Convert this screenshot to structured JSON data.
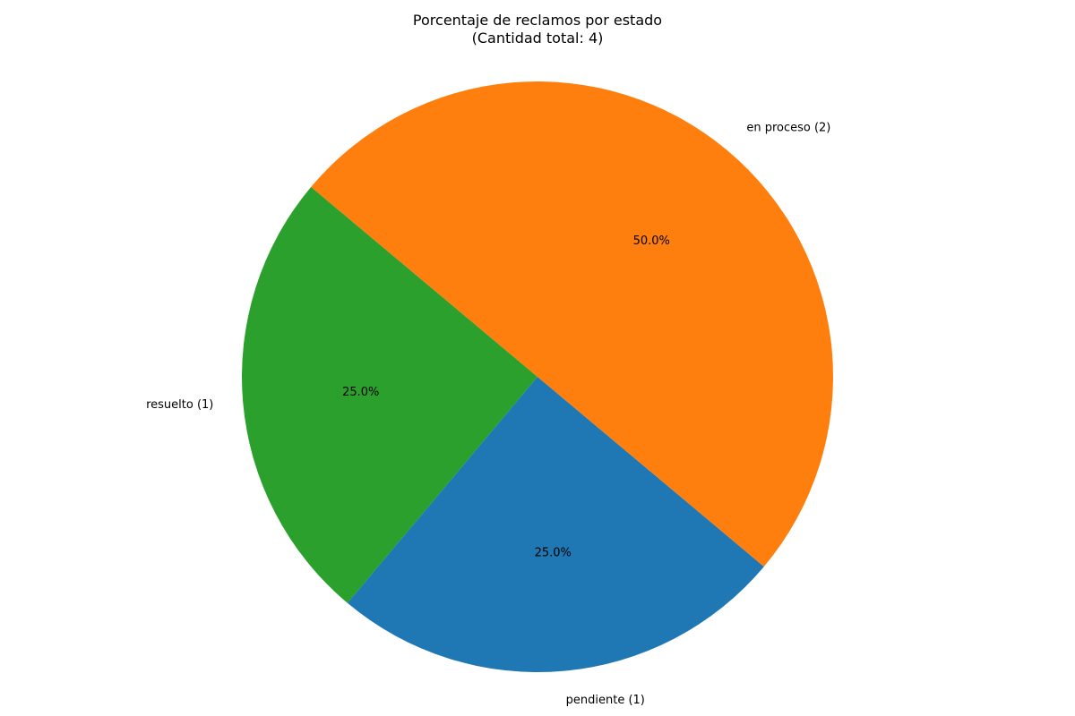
{
  "chart_data": {
    "type": "pie",
    "title_line1": "Porcentaje de reclamos por estado",
    "title_line2": "(Cantidad total: 4)",
    "slices": [
      {
        "label": "resuelto (1)",
        "value": 1,
        "pct_label": "25.0%",
        "color": "#2ca02c"
      },
      {
        "label": "pendiente (1)",
        "value": 1,
        "pct_label": "25.0%",
        "color": "#1f77b4"
      },
      {
        "label": "en proceso (2)",
        "value": 2,
        "pct_label": "50.0%",
        "color": "#ff7f0e"
      }
    ],
    "start_angle_deg": 140,
    "direction": "counterclockwise",
    "legend": "none"
  }
}
